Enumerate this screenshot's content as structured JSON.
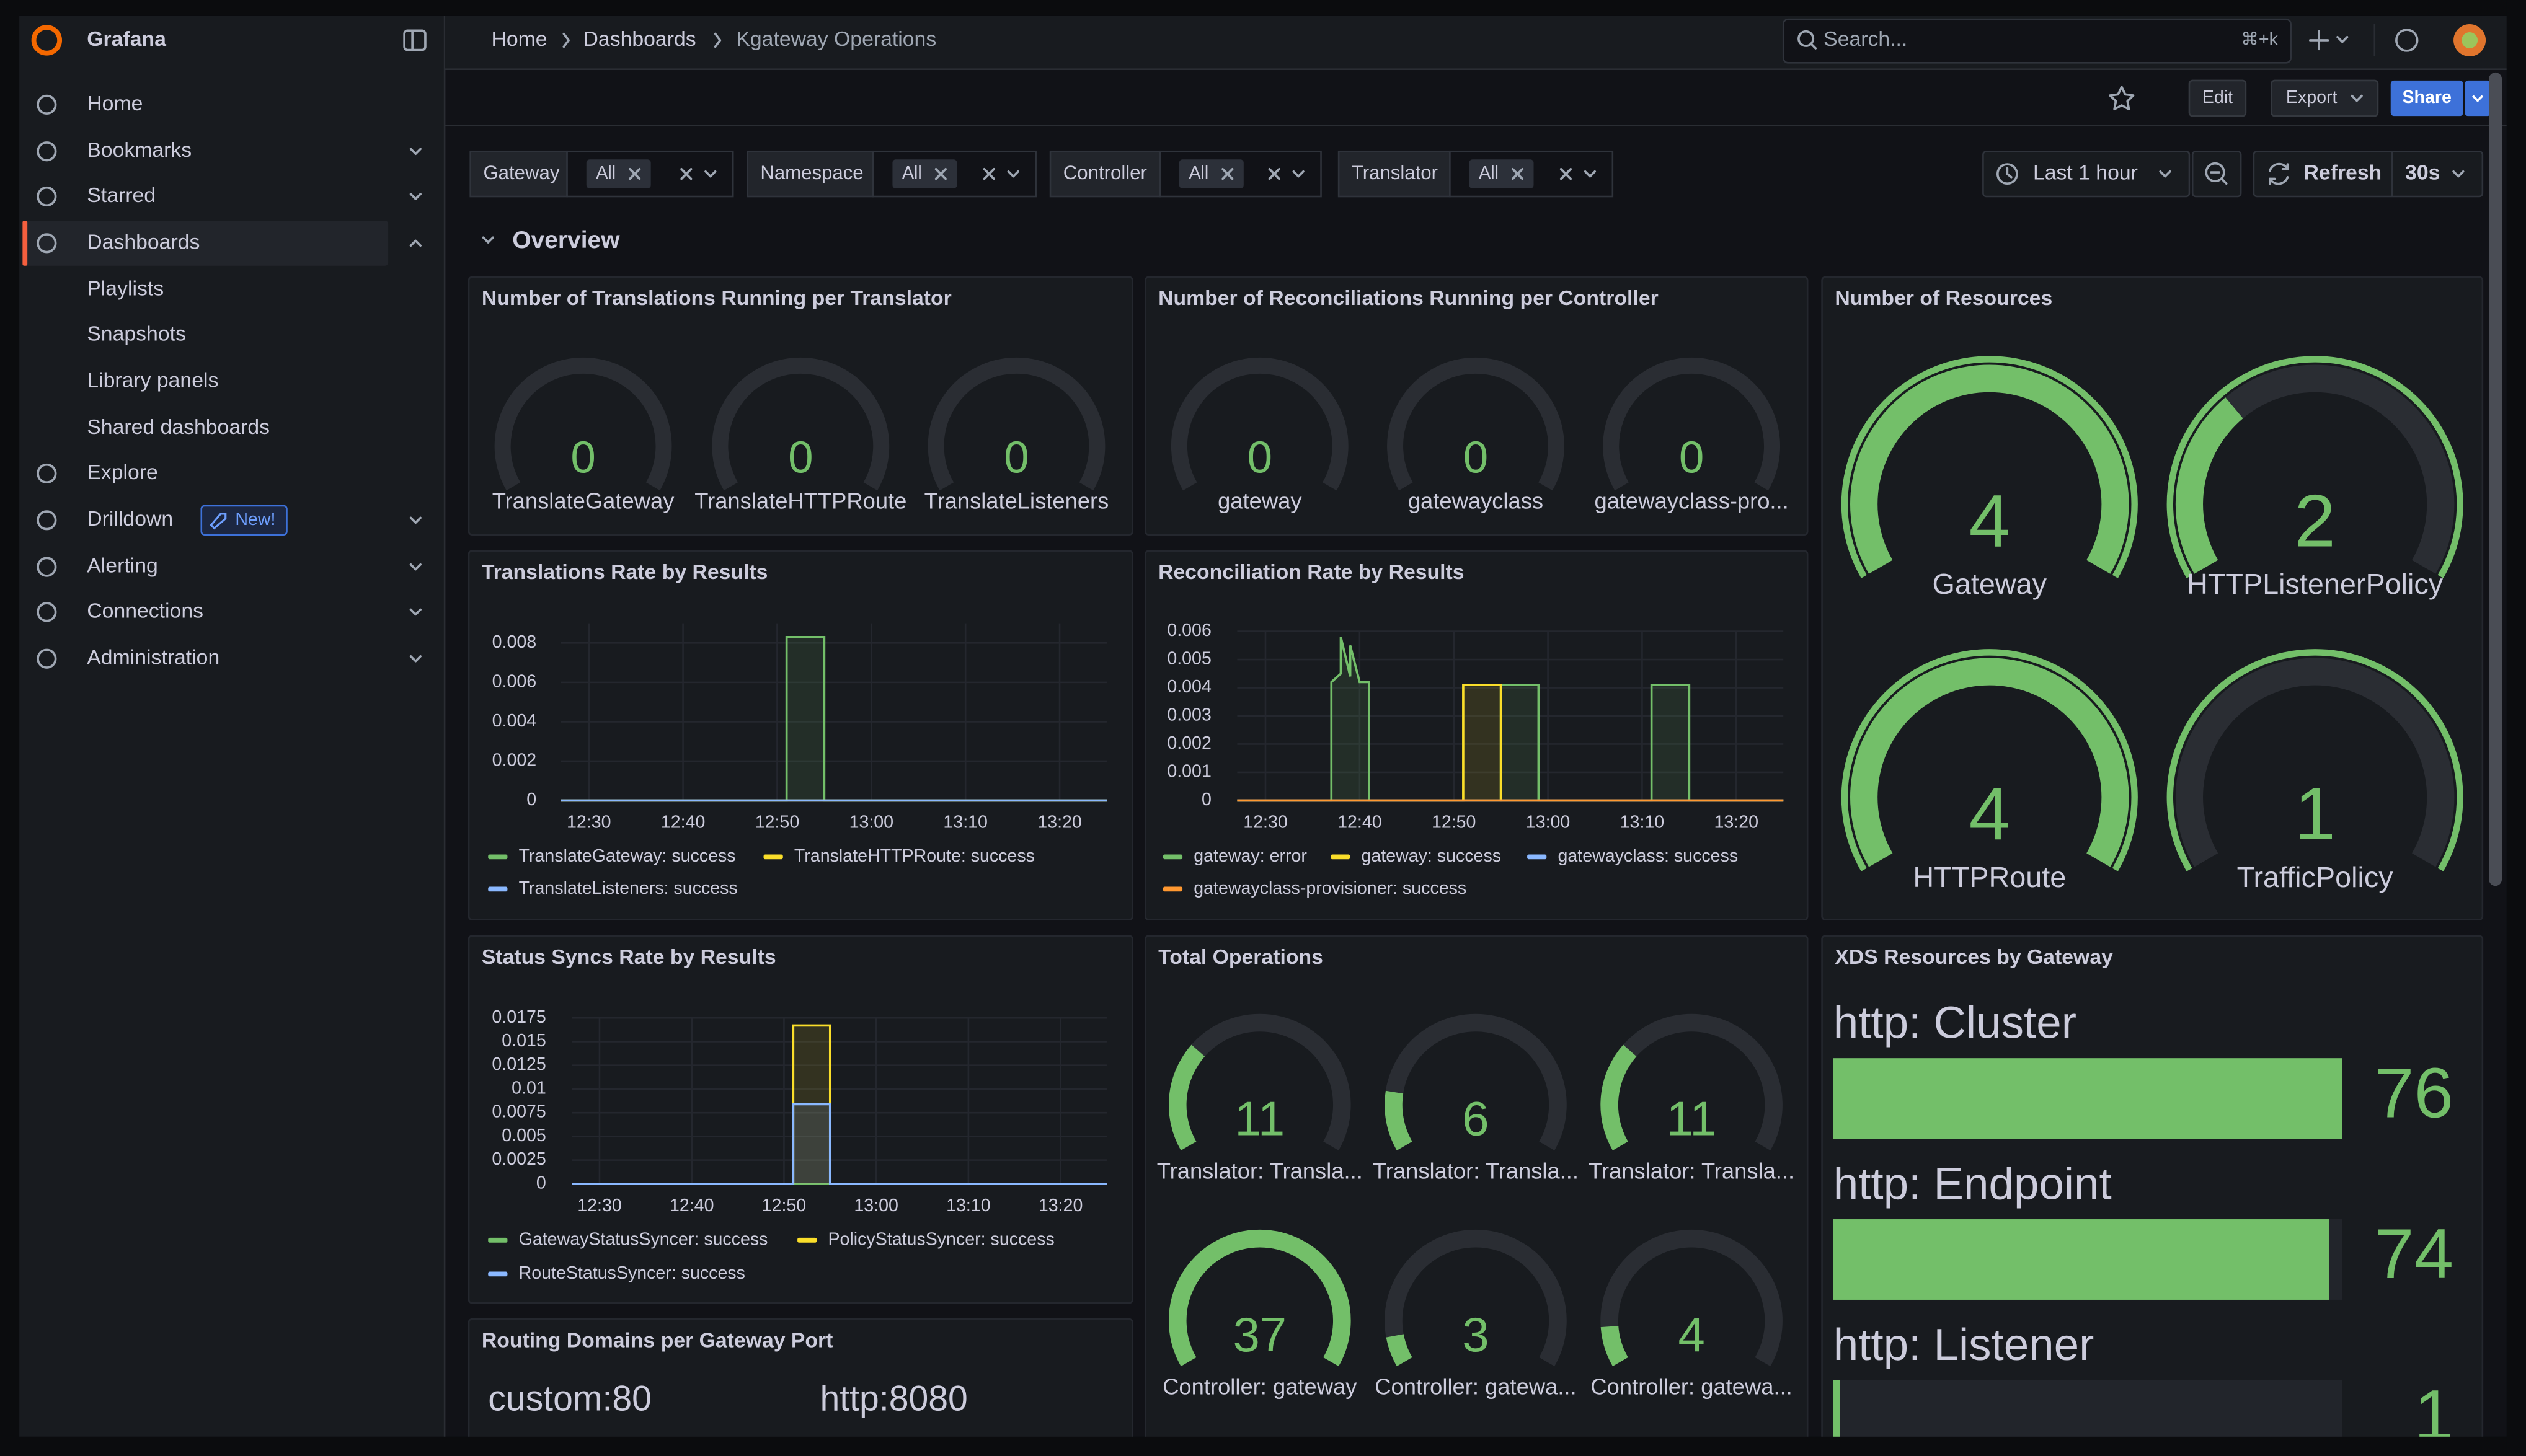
{
  "app": {
    "brand": "Grafana"
  },
  "nav": {
    "items": [
      {
        "label": "Home"
      },
      {
        "label": "Bookmarks"
      },
      {
        "label": "Starred"
      },
      {
        "label": "Dashboards"
      },
      {
        "label": "Playlists"
      },
      {
        "label": "Snapshots"
      },
      {
        "label": "Library panels"
      },
      {
        "label": "Shared dashboards"
      },
      {
        "label": "Explore"
      },
      {
        "label": "Drilldown",
        "badge": "New!"
      },
      {
        "label": "Alerting"
      },
      {
        "label": "Connections"
      },
      {
        "label": "Administration"
      }
    ]
  },
  "breadcrumbs": [
    "Home",
    "Dashboards",
    "Kgateway Operations"
  ],
  "search": {
    "placeholder": "Search...",
    "shortcut": "⌘+k"
  },
  "actions": {
    "edit": "Edit",
    "export": "Export",
    "share": "Share"
  },
  "variables": [
    {
      "label": "Gateway",
      "value": "All"
    },
    {
      "label": "Namespace",
      "value": "All"
    },
    {
      "label": "Controller",
      "value": "All"
    },
    {
      "label": "Translator",
      "value": "All"
    }
  ],
  "time_picker": {
    "range": "Last 1 hour",
    "refresh": "Refresh",
    "interval": "30s"
  },
  "row": {
    "title": "Overview"
  },
  "panels": [
    {
      "type": "gauge",
      "title": "Number of Translations Running per Translator",
      "gauges": [
        {
          "name": "TranslateGateway",
          "value": 0
        },
        {
          "name": "TranslateHTTPRoute",
          "value": 0
        },
        {
          "name": "TranslateListeners",
          "value": 0
        }
      ]
    },
    {
      "type": "gauge",
      "title": "Number of Reconciliations Running per Controller",
      "gauges": [
        {
          "name": "gateway",
          "value": 0
        },
        {
          "name": "gatewayclass",
          "value": 0
        },
        {
          "name": "gatewayclass-pro...",
          "value": 0
        }
      ]
    },
    {
      "type": "gauge",
      "title": "Number of Resources",
      "range": [
        1,
        4
      ],
      "ring": true,
      "color": "#73bf69",
      "gauges": [
        {
          "name": "Gateway",
          "value": 4
        },
        {
          "name": "HTTPListenerPolicy",
          "value": 2
        },
        {
          "name": "HTTPRoute",
          "value": 4
        },
        {
          "name": "TrafficPolicy",
          "value": 1
        }
      ]
    },
    {
      "type": "timeseries",
      "title": "Translations Rate by Results",
      "xlim": [
        "12:27",
        "13:25"
      ],
      "xticks": [
        "12:30",
        "12:40",
        "12:50",
        "13:00",
        "13:10",
        "13:20"
      ],
      "ylim": [
        0,
        0.009
      ],
      "yticks": [
        0,
        0.002,
        0.004,
        0.006,
        0.008
      ],
      "series": [
        {
          "name": "TranslateGateway: success",
          "color": "#73bf69",
          "x": [
            "12:27",
            "12:51",
            "12:51",
            "12:55",
            "12:55",
            "13:25"
          ],
          "values": [
            0,
            0,
            0.0083,
            0.0083,
            0,
            0
          ]
        },
        {
          "name": "TranslateHTTPRoute: success",
          "color": "#fade2a",
          "x": [
            "12:27",
            "13:25"
          ],
          "values": [
            0,
            0
          ]
        },
        {
          "name": "TranslateListeners: success",
          "color": "#8ab8ff",
          "x": [
            "12:27",
            "13:25"
          ],
          "values": [
            0,
            0
          ]
        }
      ]
    },
    {
      "type": "timeseries",
      "title": "Reconciliation Rate by Results",
      "xlim": [
        "12:27",
        "13:25"
      ],
      "xticks": [
        "12:30",
        "12:40",
        "12:50",
        "13:00",
        "13:10",
        "13:20"
      ],
      "ylim": [
        0,
        0.006
      ],
      "yticks": [
        0,
        0.001,
        0.002,
        0.003,
        0.004,
        0.005,
        0.006
      ],
      "series": [
        {
          "name": "gateway: error",
          "color": "#73bf69",
          "x": [
            "12:27",
            "12:37",
            "12:37",
            "12:38",
            "12:38",
            "12:39",
            "12:39",
            "12:40",
            "12:41",
            "12:41",
            "12:55",
            "12:55",
            "12:59",
            "12:59",
            "13:11",
            "13:11",
            "13:15",
            "13:15",
            "13:25"
          ],
          "values": [
            0,
            0,
            0.0042,
            0.0045,
            0.0058,
            0.0044,
            0.0055,
            0.0042,
            0.0042,
            0,
            0,
            0.0041,
            0.0041,
            0,
            0,
            0.0041,
            0.0041,
            0,
            0
          ]
        },
        {
          "name": "gateway: success",
          "color": "#fade2a",
          "x": [
            "12:27",
            "12:51",
            "12:51",
            "12:55",
            "12:55",
            "13:25"
          ],
          "values": [
            0,
            0,
            0.0041,
            0.0041,
            0,
            0
          ]
        },
        {
          "name": "gatewayclass: success",
          "color": "#8ab8ff",
          "x": [
            "12:27",
            "13:25"
          ],
          "values": [
            0,
            0
          ]
        },
        {
          "name": "gatewayclass-provisioner: success",
          "color": "#ff9830",
          "x": [
            "12:27",
            "13:25"
          ],
          "values": [
            0,
            0
          ]
        }
      ]
    },
    {
      "type": "timeseries",
      "title": "Status Syncs Rate by Results",
      "xlim": [
        "12:27",
        "13:25"
      ],
      "xticks": [
        "12:30",
        "12:40",
        "12:50",
        "13:00",
        "13:10",
        "13:20"
      ],
      "ylim": [
        0,
        0.0175
      ],
      "yticks": [
        0,
        0.0025,
        0.005,
        0.0075,
        0.01,
        0.0125,
        0.015,
        0.0175
      ],
      "series": [
        {
          "name": "GatewayStatusSyncer: success",
          "color": "#73bf69",
          "x": [
            "12:27",
            "13:25"
          ],
          "values": [
            0,
            0
          ]
        },
        {
          "name": "PolicyStatusSyncer: success",
          "color": "#fade2a",
          "x": [
            "12:27",
            "12:51",
            "12:51",
            "12:55",
            "12:55",
            "13:25"
          ],
          "values": [
            0,
            0,
            0.0167,
            0.0167,
            0,
            0
          ]
        },
        {
          "name": "RouteStatusSyncer: success",
          "color": "#8ab8ff",
          "x": [
            "12:27",
            "12:51",
            "12:51",
            "12:55",
            "12:55",
            "13:25"
          ],
          "values": [
            0,
            0,
            0.0084,
            0.0084,
            0,
            0
          ]
        }
      ]
    },
    {
      "type": "gauge",
      "title": "Total Operations",
      "range": [
        0,
        37
      ],
      "color": "#73bf69",
      "gauges": [
        {
          "name": "Translator: Transla...",
          "value": 11
        },
        {
          "name": "Translator: Transla...",
          "value": 6
        },
        {
          "name": "Translator: Transla...",
          "value": 11
        },
        {
          "name": "Controller: gateway",
          "value": 37
        },
        {
          "name": "Controller: gatewa...",
          "value": 3
        },
        {
          "name": "Controller: gatewa...",
          "value": 4
        }
      ]
    },
    {
      "type": "bargauge",
      "title": "XDS Resources by Gateway",
      "range": [
        0,
        76
      ],
      "color": "#73bf69",
      "items": [
        {
          "name": "http: Cluster",
          "value": 76
        },
        {
          "name": "http: Endpoint",
          "value": 74
        },
        {
          "name": "http: Listener",
          "value": 1
        }
      ]
    },
    {
      "type": "stat",
      "title": "Routing Domains per Gateway Port",
      "values": [
        "custom:80",
        "http:8080"
      ]
    }
  ]
}
